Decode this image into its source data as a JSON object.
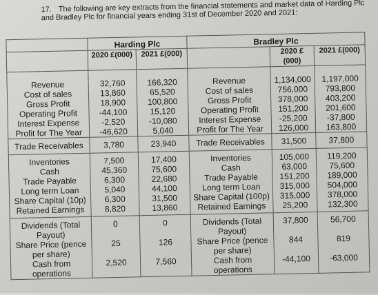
{
  "question": {
    "number": "17.",
    "text": "The following are key extracts from the financial statements and market data of Harding Plc and Bradley Plc for financial years ending 31st of December 2020 and 2021:"
  },
  "harding": {
    "name": "Harding Plc",
    "col2020": "2020 £(000)",
    "col2021": "2021 £(000)",
    "group1": {
      "labels": [
        "Revenue",
        "Cost of sales",
        "Gross Profit",
        "Operating Profit",
        "Interest Expense",
        "Profit for The Year"
      ],
      "v2020": [
        "32,760",
        "13,860",
        "18,900",
        "-44,100",
        "-2,520",
        "-46,620"
      ],
      "v2021": [
        "166,320",
        "65,520",
        "100,800",
        "15,120",
        "-10,080",
        "5,040"
      ]
    },
    "trade_receivables": {
      "label": "Trade Receivables",
      "v2020": "3,780",
      "v2021": "23,940"
    },
    "group2": {
      "labels": [
        "Inventories",
        "Cash",
        "Trade Payable",
        "Long term Loan",
        "Share Capital (10p)",
        "Retained Earnings"
      ],
      "v2020": [
        "7,500",
        "45,360",
        "6,300",
        "5,040",
        "6,300",
        "8,820"
      ],
      "v2021": [
        "17,400",
        "75,600",
        "22,680",
        "44,100",
        "31,500",
        "13,860"
      ]
    },
    "group3": {
      "dividends_label": "Dividends (Total Payout)",
      "dividends_2020": "0",
      "dividends_2021": "0",
      "share_price_label": "Share Price (pence per share)",
      "share_price_2020": "25",
      "share_price_2021": "126",
      "cash_ops_label": "Cash from operations",
      "cash_ops_2020": "2,520",
      "cash_ops_2021": "7,560"
    }
  },
  "bradley": {
    "name": "Bradley Plc",
    "col2020": "2020 £(000)",
    "col2021": "2021 £(000)",
    "group1": {
      "labels": [
        "Revenue",
        "Cost of sales",
        "Gross Profit",
        "Operating Profit",
        "Interest Expense",
        "Profit for The Year"
      ],
      "v2020": [
        "1,134,000",
        "756,000",
        "378,000",
        "151,200",
        "-25,200",
        "126,000"
      ],
      "v2021": [
        "1,197,000",
        "793,800",
        "403,200",
        "201,600",
        "-37,800",
        "163,800"
      ]
    },
    "trade_receivables": {
      "label": "Trade Receivables",
      "v2020": "31,500",
      "v2021": "37,800"
    },
    "group2": {
      "labels": [
        "Inventories",
        "Cash",
        "Trade Payable",
        "Long term Loan",
        "Share Capital (100p)",
        "Retained Earnings"
      ],
      "v2020": [
        "105,000",
        "63,000",
        "151,200",
        "315,000",
        "315,000",
        "25,200"
      ],
      "v2021": [
        "119,200",
        "75,600",
        "189,000",
        "504,000",
        "378,000",
        "132,300"
      ]
    },
    "group3": {
      "dividends_label": "Dividends (Total Payout)",
      "dividends_2020": "37,800",
      "dividends_2021": "56,700",
      "share_price_label": "Share Price (pence per share)",
      "share_price_2020": "844",
      "share_price_2021": "819",
      "cash_ops_label": "Cash from operations",
      "cash_ops_2020": "-44,100",
      "cash_ops_2021": "-63,000"
    }
  }
}
